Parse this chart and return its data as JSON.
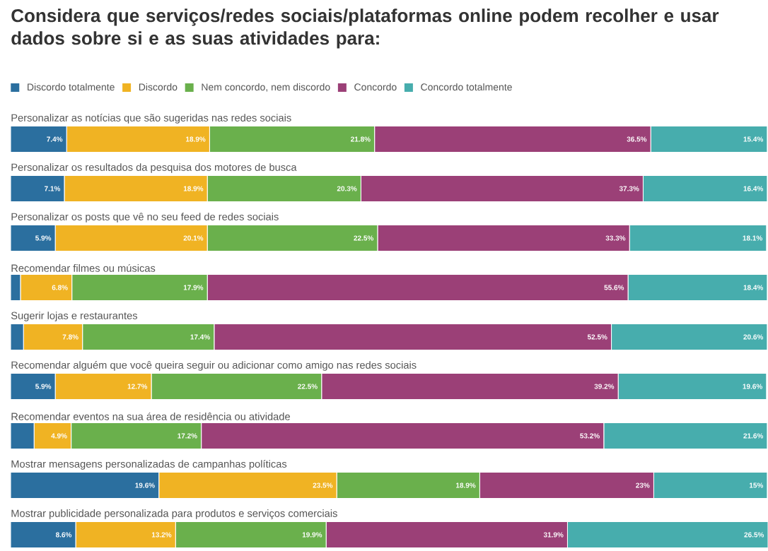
{
  "chart_data": {
    "type": "bar",
    "orientation": "horizontal",
    "stacked": true,
    "legend": "top left",
    "title": "Considera que serviços/redes sociais/plataformas online podem recolher e usar dados sobre si e as suas atividades para:",
    "categories": [
      "Personalizar as notícias que são sugeridas nas redes sociais",
      "Personalizar os resultados da pesquisa dos motores de busca",
      "Personalizar os posts que vê no seu feed de redes sociais",
      "Recomendar filmes ou músicas",
      "Sugerir lojas e restaurantes",
      "Recomendar alguém que você queira seguir ou adicionar como amigo nas redes sociais",
      "Recomendar eventos na sua área de residência ou atividade",
      "Mostrar mensagens personalizadas de campanhas políticas",
      "Mostrar publicidade personalizada para produtos e serviços comerciais"
    ],
    "series": [
      {
        "name": "Discordo totalmente",
        "color": "#2b6f9f",
        "values": [
          7.4,
          7.1,
          5.9,
          1.3,
          1.7,
          5.9,
          3.1,
          19.6,
          8.6
        ],
        "value_labels": [
          "7.4%",
          "7.1%",
          "5.9%",
          null,
          null,
          "5.9%",
          null,
          "19.6%",
          "8.6%"
        ]
      },
      {
        "name": "Discordo",
        "color": "#f0b323",
        "values": [
          18.9,
          18.9,
          20.1,
          6.8,
          7.8,
          12.7,
          4.9,
          23.5,
          13.2
        ],
        "value_labels": [
          "18.9%",
          "18.9%",
          "20.1%",
          "6.8%",
          "7.8%",
          "12.7%",
          "4.9%",
          "23.5%",
          "13.2%"
        ]
      },
      {
        "name": "Nem concordo, nem discordo",
        "color": "#6ab04c",
        "values": [
          21.8,
          20.3,
          22.5,
          17.9,
          17.4,
          22.5,
          17.2,
          18.9,
          19.9
        ],
        "value_labels": [
          "21.8%",
          "20.3%",
          "22.5%",
          "17.9%",
          "17.4%",
          "22.5%",
          "17.2%",
          "18.9%",
          "19.9%"
        ]
      },
      {
        "name": "Concordo",
        "color": "#9b4077",
        "values": [
          36.5,
          37.3,
          33.3,
          55.6,
          52.5,
          39.2,
          53.2,
          23,
          31.9
        ],
        "value_labels": [
          "36.5%",
          "37.3%",
          "33.3%",
          "55.6%",
          "52.5%",
          "39.2%",
          "53.2%",
          "23%",
          "31.9%"
        ]
      },
      {
        "name": "Concordo totalmente",
        "color": "#47adad",
        "values": [
          15.4,
          16.4,
          18.1,
          18.4,
          20.6,
          19.6,
          21.6,
          15,
          26.5
        ],
        "value_labels": [
          "15.4%",
          "16.4%",
          "18.1%",
          "18.4%",
          "20.6%",
          "19.6%",
          "21.6%",
          "15%",
          "26.5%"
        ]
      }
    ]
  }
}
